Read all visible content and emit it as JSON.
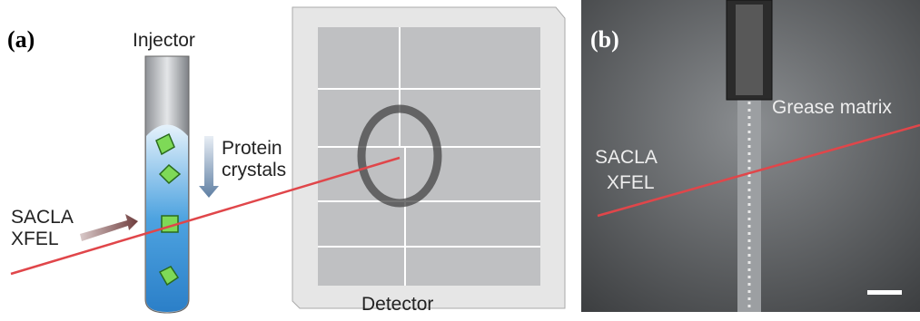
{
  "panel_a": {
    "label": "(a)",
    "injector": "Injector",
    "crystals": [
      "Protein",
      "crystals"
    ],
    "source": [
      "SACLA",
      "XFEL"
    ],
    "detector": "Detector"
  },
  "panel_b": {
    "label": "(b)",
    "matrix": "Grease matrix",
    "source": [
      "SACLA",
      "XFEL"
    ]
  }
}
